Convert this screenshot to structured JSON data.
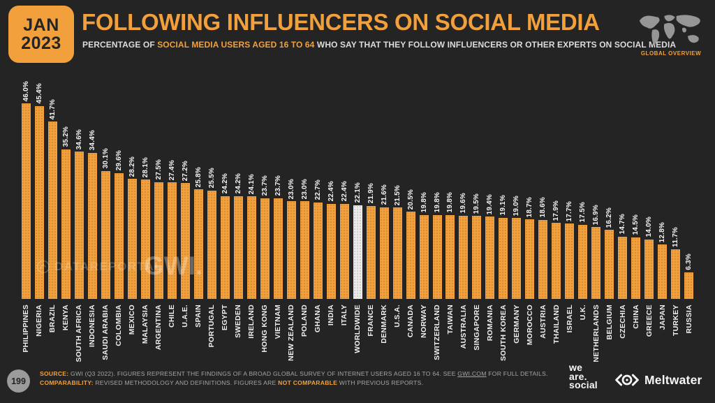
{
  "header": {
    "date_badge": {
      "month": "JAN",
      "year": "2023"
    },
    "title": "FOLLOWING INFLUENCERS ON SOCIAL MEDIA",
    "subtitle_prefix": "PERCENTAGE OF ",
    "subtitle_highlight": "SOCIAL MEDIA USERS AGED 16 TO 64",
    "subtitle_suffix": " WHO SAY THAT THEY FOLLOW INFLUENCERS OR OTHER EXPERTS ON SOCIAL MEDIA",
    "global_overview_label": "GLOBAL OVERVIEW"
  },
  "watermarks": {
    "dataportal": "DATAREPORTAL",
    "gwi": "GWI."
  },
  "chart_data": {
    "type": "bar",
    "title": "FOLLOWING INFLUENCERS ON SOCIAL MEDIA",
    "ylabel": "Percentage of social media users aged 16 to 64",
    "ylim": [
      0,
      46
    ],
    "grid": false,
    "legend": "none",
    "value_suffix": "%",
    "bar_color": "#F2A03C",
    "highlight_color": "#EAEAEA",
    "highlight_category": "WORLDWIDE",
    "highlight_index": 25,
    "categories": [
      "PHILIPPINES",
      "NIGERIA",
      "BRAZIL",
      "KENYA",
      "SOUTH AFRICA",
      "INDONESIA",
      "SAUDI ARABIA",
      "COLOMBIA",
      "MEXICO",
      "MALAYSIA",
      "ARGENTINA",
      "CHILE",
      "U.A.E.",
      "SPAIN",
      "PORTUGAL",
      "EGYPT",
      "SWEDEN",
      "IRELAND",
      "HONG KONG",
      "VIETNAM",
      "NEW ZEALAND",
      "POLAND",
      "GHANA",
      "INDIA",
      "ITALY",
      "WORLDWIDE",
      "FRANCE",
      "DENMARK",
      "U.S.A.",
      "CANADA",
      "NORWAY",
      "SWITZERLAND",
      "TAIWAN",
      "AUSTRALIA",
      "SINGAPORE",
      "ROMANIA",
      "SOUTH KOREA",
      "GERMANY",
      "MOROCCO",
      "AUSTRIA",
      "THAILAND",
      "ISRAEL",
      "U.K.",
      "NETHERLANDS",
      "BELGIUM",
      "CZECHIA",
      "CHINA",
      "GREECE",
      "JAPAN",
      "TURKEY",
      "RUSSIA"
    ],
    "values": [
      46.0,
      45.4,
      41.7,
      35.2,
      34.6,
      34.4,
      30.1,
      29.6,
      28.2,
      28.1,
      27.5,
      27.4,
      27.2,
      25.8,
      25.5,
      24.2,
      24.2,
      24.1,
      23.7,
      23.7,
      23.0,
      23.0,
      22.7,
      22.4,
      22.4,
      22.1,
      21.9,
      21.6,
      21.5,
      20.5,
      19.8,
      19.8,
      19.8,
      19.6,
      19.5,
      19.4,
      19.1,
      19.0,
      18.7,
      18.6,
      17.9,
      17.7,
      17.5,
      16.9,
      16.2,
      14.7,
      14.5,
      14.0,
      12.8,
      11.7,
      6.3
    ]
  },
  "footer": {
    "page_number": "199",
    "source_label": "SOURCE:",
    "source_text1": " GWI (Q3 2022). FIGURES REPRESENT THE FINDINGS OF A BROAD GLOBAL SURVEY OF INTERNET USERS AGED 16 TO 64. SEE ",
    "source_link": "GWI.COM",
    "source_text2": " FOR FULL DETAILS. ",
    "comparability_label": "COMPARABILITY:",
    "comparability_text1": " REVISED METHODOLOGY AND DEFINITIONS. FIGURES ARE ",
    "not_comparable": "NOT COMPARABLE",
    "comparability_text2": " WITH PREVIOUS REPORTS.",
    "logo_we_are_social_lines": [
      "we",
      "are.",
      "social"
    ],
    "logo_meltwater": "Meltwater"
  },
  "colors": {
    "background": "#242424",
    "accent": "#F2A03C",
    "highlight_bar": "#EAEAEA",
    "muted_text": "#A5A5A5"
  }
}
